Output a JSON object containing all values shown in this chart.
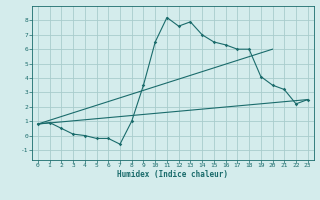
{
  "title": "",
  "xlabel": "Humidex (Indice chaleur)",
  "bg_color": "#d4ecec",
  "grid_color": "#a8cccc",
  "line_color": "#1a6b6b",
  "xlim": [
    -0.5,
    23.5
  ],
  "ylim": [
    -1.7,
    9.0
  ],
  "xticks": [
    0,
    1,
    2,
    3,
    4,
    5,
    6,
    7,
    8,
    9,
    10,
    11,
    12,
    13,
    14,
    15,
    16,
    17,
    18,
    19,
    20,
    21,
    22,
    23
  ],
  "yticks": [
    -1,
    0,
    1,
    2,
    3,
    4,
    5,
    6,
    7,
    8
  ],
  "line1_x": [
    0,
    1,
    2,
    3,
    4,
    5,
    6,
    7,
    8,
    9,
    10,
    11,
    12,
    13,
    14,
    15,
    16,
    17,
    18,
    19,
    20,
    21,
    22,
    23
  ],
  "line1_y": [
    0.8,
    0.9,
    0.5,
    0.1,
    0.0,
    -0.2,
    -0.2,
    -0.6,
    1.0,
    3.5,
    6.5,
    8.2,
    7.6,
    7.9,
    7.0,
    6.5,
    6.3,
    6.0,
    6.0,
    4.1,
    3.5,
    3.2,
    2.2,
    2.5
  ],
  "line2_x": [
    0,
    23
  ],
  "line2_y": [
    0.8,
    2.5
  ],
  "line3_x": [
    0,
    20
  ],
  "line3_y": [
    0.8,
    6.0
  ]
}
